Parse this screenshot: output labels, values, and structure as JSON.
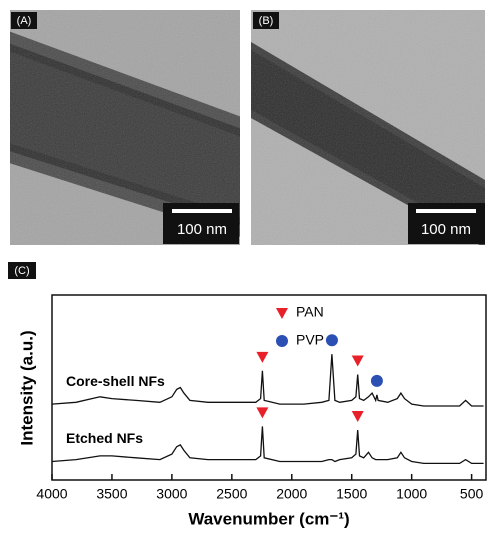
{
  "images": [
    {
      "label": "(A)",
      "scale_bar": "100 nm"
    },
    {
      "label": "(B)",
      "scale_bar": "100 nm"
    }
  ],
  "chart_data": {
    "type": "line",
    "panel_label": "(C)",
    "x_label": "Wavenumber (cm⁻¹)",
    "y_label": "Intensity (a.u.)",
    "xlim": [
      4000,
      380
    ],
    "xticks": [
      4000,
      3500,
      3000,
      2500,
      2000,
      1500,
      1000,
      500
    ],
    "ylim": [
      0,
      10
    ],
    "x": [
      4000,
      3800,
      3600,
      3500,
      3300,
      3100,
      3000,
      2960,
      2930,
      2900,
      2850,
      2700,
      2500,
      2300,
      2260,
      2245,
      2230,
      2100,
      1900,
      1750,
      1690,
      1665,
      1640,
      1600,
      1500,
      1465,
      1450,
      1435,
      1400,
      1360,
      1330,
      1300,
      1290,
      1280,
      1200,
      1120,
      1090,
      1060,
      1000,
      900,
      800,
      700,
      600,
      550,
      500,
      450,
      400
    ],
    "series": [
      {
        "name": "Core-shell NFs",
        "color": "#111111",
        "values": [
          4.1,
          4.2,
          4.5,
          4.4,
          4.3,
          4.2,
          4.5,
          4.9,
          5.0,
          4.7,
          4.3,
          4.2,
          4.2,
          4.2,
          4.4,
          5.9,
          4.3,
          4.1,
          4.1,
          4.2,
          4.3,
          6.8,
          4.3,
          4.2,
          4.3,
          4.5,
          5.7,
          4.4,
          4.3,
          4.5,
          4.7,
          4.3,
          4.6,
          4.3,
          4.2,
          4.4,
          4.7,
          4.4,
          4.1,
          4.0,
          4.0,
          4.0,
          4.0,
          4.3,
          4.0,
          4.0,
          4.0
        ]
      },
      {
        "name": "Etched NFs",
        "color": "#111111",
        "values": [
          1.0,
          1.1,
          1.3,
          1.3,
          1.2,
          1.1,
          1.4,
          1.8,
          1.9,
          1.6,
          1.2,
          1.1,
          1.1,
          1.1,
          1.3,
          2.9,
          1.2,
          1.0,
          1.0,
          1.0,
          1.1,
          1.1,
          1.0,
          1.1,
          1.2,
          1.4,
          2.7,
          1.3,
          1.2,
          1.5,
          1.2,
          1.1,
          1.1,
          1.1,
          1.1,
          1.2,
          1.5,
          1.2,
          1.0,
          0.9,
          0.9,
          0.9,
          0.9,
          1.1,
          0.9,
          0.9,
          0.9
        ]
      }
    ],
    "markers": [
      {
        "name": "PAN",
        "color": "#e8202a",
        "shape": "triangle",
        "peaks": [
          {
            "series": 0,
            "x": 2245
          },
          {
            "series": 0,
            "x": 1450
          },
          {
            "series": 1,
            "x": 2245
          },
          {
            "series": 1,
            "x": 1450
          }
        ]
      },
      {
        "name": "PVP",
        "color": "#2b4fb3",
        "shape": "circle",
        "peaks": [
          {
            "series": 0,
            "x": 1665
          },
          {
            "series": 0,
            "x": 1290
          }
        ]
      }
    ]
  }
}
